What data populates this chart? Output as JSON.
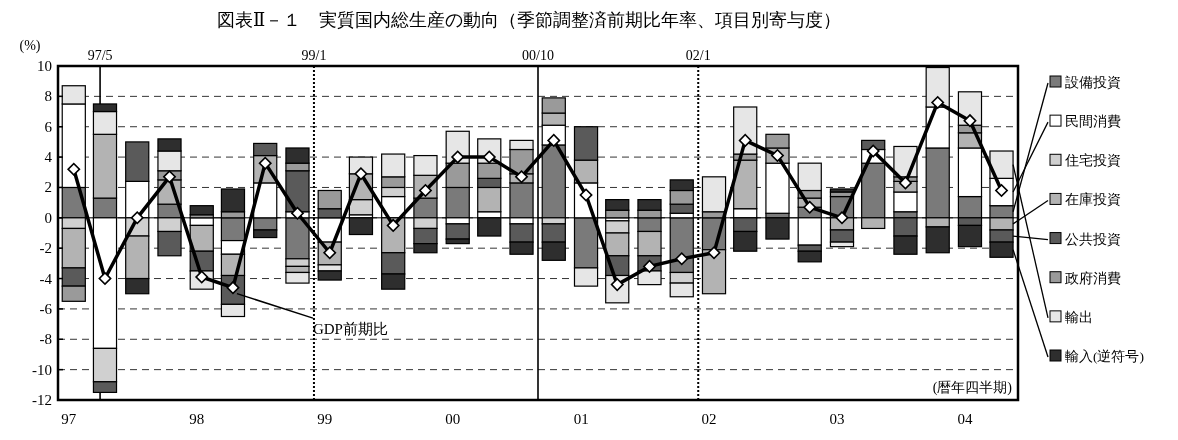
{
  "chart_data": {
    "type": "bar",
    "title": "図表Ⅱ－１　実質国内総生産の動向（季節調整済前期比年率、項目別寄与度）",
    "ylabel": "(%)",
    "x": [
      "1997-02-15",
      "1997-05-15",
      "1997-08-15",
      "1997-11-15",
      "1998-02-15",
      "1998-05-15",
      "1998-08-15",
      "1998-11-15",
      "1999-02-15",
      "1999-05-15",
      "1999-08-15",
      "1999-11-15",
      "2000-02-15",
      "2000-05-15",
      "2000-08-15",
      "2000-11-15",
      "2001-02-15",
      "2001-05-15",
      "2001-08-15",
      "2001-11-15",
      "2002-02-15",
      "2002-05-15",
      "2002-08-15",
      "2002-11-15",
      "2003-02-15",
      "2003-05-15",
      "2003-08-15",
      "2003-11-15",
      "2004-02-15",
      "2004-05-15"
    ],
    "xlim": [
      "1997",
      "2004-07"
    ],
    "xticks": [
      {
        "value": "1997-02",
        "label": "97"
      },
      {
        "value": "1998-02",
        "label": "98"
      },
      {
        "value": "1999-02",
        "label": "99"
      },
      {
        "value": "2000-02",
        "label": "00"
      },
      {
        "value": "2001-02",
        "label": "01"
      },
      {
        "value": "2002-02",
        "label": "02"
      },
      {
        "value": "2003-02",
        "label": "03"
      },
      {
        "value": "2004-02",
        "label": "04"
      }
    ],
    "ylim": [
      -12,
      10
    ],
    "yticks": [
      -12,
      -10,
      -8,
      -6,
      -4,
      -2,
      0,
      2,
      4,
      6,
      8,
      10
    ],
    "grid": "y",
    "stacked": true,
    "legend": "right",
    "series": [
      {
        "name": "設備投資",
        "color": "#7a7a7a",
        "values": [
          2.0,
          1.3,
          0,
          0.9,
          0,
          -1.5,
          -0.8,
          -2.7,
          0,
          0,
          0,
          1.3,
          2.0,
          0,
          2.3,
          4.8,
          -3.3,
          0,
          -0.9,
          -3.6,
          -2.1,
          0,
          0.3,
          0.7,
          1.4,
          3.6,
          0.4,
          4.6,
          1.4,
          0.8
        ]
      },
      {
        "name": "民間消費",
        "color": "#ffffff",
        "values": [
          5.5,
          -8.6,
          2.4,
          0,
          -0.5,
          -0.9,
          2.3,
          0.4,
          -1.6,
          0.2,
          1.4,
          0,
          -0.4,
          0.4,
          -0.4,
          1.3,
          2.3,
          -0.2,
          0,
          0.3,
          0,
          0.6,
          3.3,
          -1.8,
          0,
          0.9,
          1.3,
          2.7,
          3.2,
          1.8
        ]
      },
      {
        "name": "住宅投資",
        "color": "#d0d0d0",
        "values": [
          -0.7,
          -2.2,
          -1.2,
          -0.9,
          0,
          0,
          0,
          -0.5,
          0,
          1.0,
          0.6,
          -0.7,
          0,
          0,
          0,
          -0.4,
          0,
          -0.8,
          0,
          -0.7,
          0,
          0,
          0,
          0,
          0,
          0,
          0,
          0,
          0,
          0
        ]
      },
      {
        "name": "在庫投資",
        "color": "#b3b3b3",
        "values": [
          -2.6,
          4.2,
          -2.8,
          1.6,
          -1.7,
          -1.4,
          1.8,
          -0.4,
          -1.5,
          1.7,
          -2.3,
          1.5,
          0,
          1.6,
          0.6,
          0.8,
          1.5,
          -1.5,
          -1.6,
          0,
          -2.9,
          3.2,
          1.0,
          0.6,
          -0.8,
          -0.7,
          0.7,
          -0.6,
          1.0,
          -0.8
        ]
      },
      {
        "name": "公共投資",
        "color": "#5a5a5a",
        "values": [
          -1.2,
          -0.7,
          2.6,
          -1.6,
          -1.3,
          -1.9,
          0.8,
          2.7,
          0.6,
          0,
          -1.4,
          -1.0,
          -1.0,
          0.6,
          -1.2,
          -1.2,
          2.2,
          -1.3,
          -1.0,
          0.6,
          0,
          -0.9,
          0,
          -0.4,
          -0.8,
          0.6,
          -1.2,
          0,
          -0.5,
          -0.8
        ]
      },
      {
        "name": "政府消費",
        "color": "#9a9a9a",
        "values": [
          -1.0,
          0,
          0,
          0.6,
          0.2,
          0.4,
          0,
          0.5,
          1.2,
          0,
          0.7,
          0,
          1.6,
          1.0,
          1.6,
          1.0,
          0,
          0.5,
          0.5,
          0.9,
          0.4,
          0.4,
          0.9,
          0.5,
          0.3,
          0,
          0.3,
          0,
          0.5,
          0
        ]
      },
      {
        "name": "輸出",
        "color": "#e6e6e6",
        "values": [
          1.2,
          1.5,
          0,
          1.3,
          -1.2,
          -0.8,
          0,
          -0.7,
          -0.4,
          1.1,
          1.5,
          1.3,
          2.1,
          1.6,
          0.6,
          0,
          -1.2,
          -1.8,
          -0.9,
          -0.9,
          2.3,
          3.1,
          0,
          1.8,
          -0.3,
          0,
          2.0,
          2.6,
          2.2,
          1.8
        ]
      },
      {
        "name": "輸入(逆符号)",
        "color": "#2e2e2e",
        "values": [
          0,
          0.5,
          -1.0,
          0.8,
          0.6,
          1.5,
          -0.5,
          1.0,
          -0.6,
          -1.1,
          -1.0,
          -0.6,
          -0.3,
          -1.2,
          -0.8,
          -1.2,
          0,
          0.7,
          0.7,
          0.7,
          0,
          -1.3,
          -1.4,
          -0.7,
          0.2,
          0,
          -1.2,
          -1.7,
          -1.4,
          -1.0
        ]
      },
      {
        "name": "GDP前期比",
        "type": "line",
        "color": "#000000",
        "marker": "diamond",
        "values": [
          3.2,
          -4.0,
          0.0,
          2.7,
          -3.9,
          -4.6,
          3.6,
          0.3,
          -2.3,
          2.9,
          -0.5,
          1.8,
          4.0,
          4.0,
          2.7,
          5.1,
          1.5,
          -4.4,
          -3.2,
          -2.7,
          -2.3,
          5.1,
          4.1,
          0.7,
          0.0,
          4.4,
          2.3,
          7.6,
          6.4,
          1.8
        ]
      }
    ],
    "ref_lines": [
      {
        "axis": "x",
        "value": "1997-05",
        "label": "97/5",
        "line_style": "solid"
      },
      {
        "axis": "x",
        "value": "1999-01",
        "label": "99/1",
        "line_style": "dotted"
      },
      {
        "axis": "x",
        "value": "2000-10",
        "label": "00/10",
        "line_style": "solid"
      },
      {
        "axis": "x",
        "value": "2002-01",
        "label": "02/1",
        "line_style": "dotted"
      }
    ],
    "annotations": [
      "(暦年四半期)"
    ]
  }
}
